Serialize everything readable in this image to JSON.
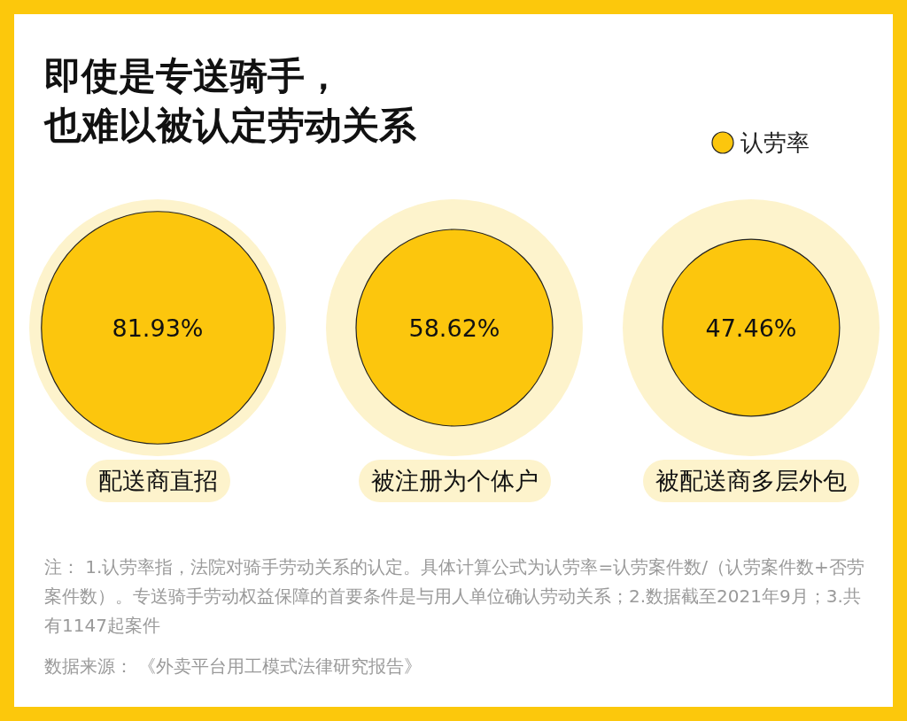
{
  "chart_data": {
    "type": "other",
    "title": "即使是专送骑手，",
    "subtitle": "也难以被认定劳动关系",
    "categories": [
      "配送商直招",
      "被注册为个体户",
      "被配送商多层外包"
    ],
    "series": [
      {
        "name": "认劳率",
        "color": "#fcc60d",
        "values": [
          81.93,
          58.62,
          47.46
        ],
        "value_labels": [
          "81.93%",
          "58.62%",
          "47.46%"
        ]
      }
    ],
    "legend": "top right",
    "annotations": [
      "注：  1.认劳率指，法院对骑手劳动关系的认定。具体计算公式为认劳率=认劳案件数/（认劳案件数+否劳案件数）。专送骑手劳动权益保障的首要条件是与用人单位确认劳动关系；2.数据截至2021年9月；3.共有1147起案件",
      "数据来源：  《外卖平台用工模式法律研究报告》"
    ]
  }
}
